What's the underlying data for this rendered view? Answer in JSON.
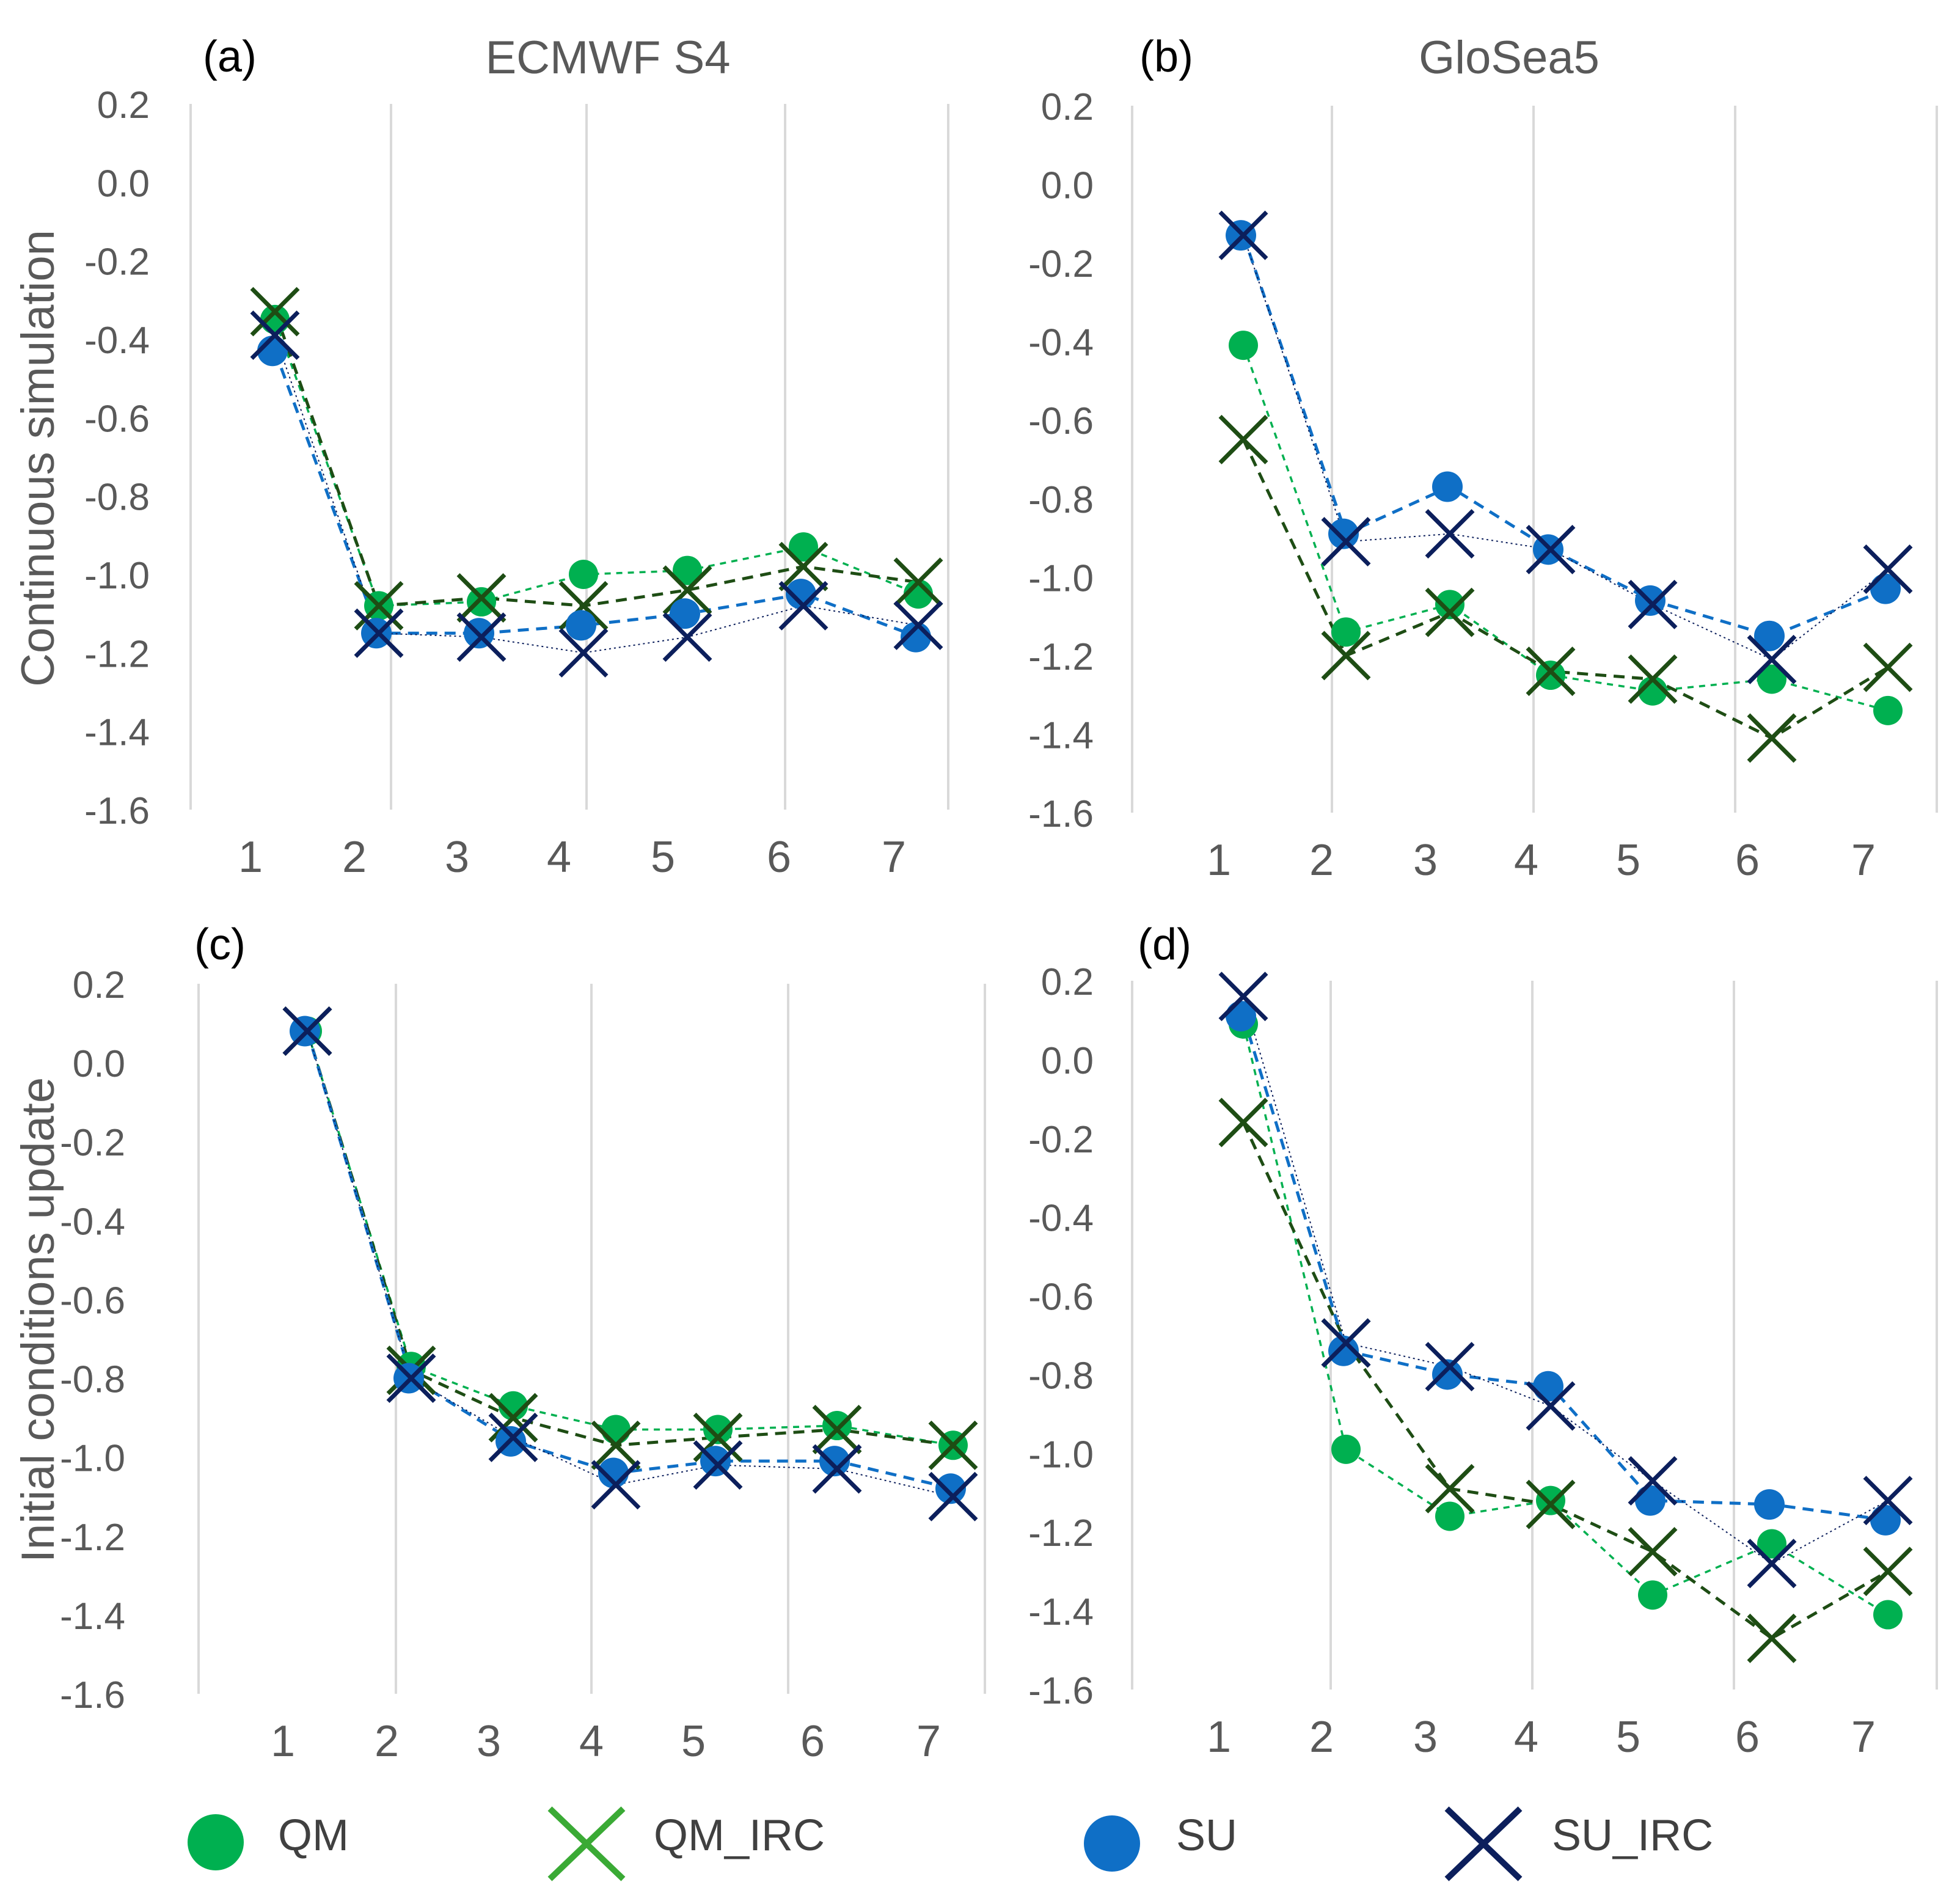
{
  "figure": {
    "row_labels": [
      "Continuous simulation",
      "Initial conditions update"
    ],
    "column_titles": [
      "ECMWF S4",
      "GloSea5"
    ]
  },
  "colors": {
    "QM": "#00b050",
    "QM_IRC": "#1e4d14",
    "QM_IRC_legend": "#3aaa35",
    "SU": "#0f6fc6",
    "SU_IRC": "#0c1f5c",
    "grid": "#d9d9d9",
    "tick_text": "#595959"
  },
  "legend": [
    {
      "series": "QM",
      "label": "QM",
      "marker": "dot-icon"
    },
    {
      "series": "QM_IRC",
      "label": "QM_IRC",
      "marker": "cross-icon"
    },
    {
      "series": "SU",
      "label": "SU",
      "marker": "dot-icon"
    },
    {
      "series": "SU_IRC",
      "label": "SU_IRC",
      "marker": "cross-icon"
    }
  ],
  "chart_data": [
    {
      "type": "line",
      "panel": "(a)",
      "title": "ECMWF S4",
      "ylabel": "Continuous simulation",
      "categories": [
        "1",
        "2",
        "3",
        "4",
        "5",
        "6",
        "7"
      ],
      "ylim": [
        -1.6,
        0.2
      ],
      "yticks": [
        "0.2",
        "0.0",
        "-0.2",
        "-0.4",
        "-0.6",
        "-0.8",
        "-1.0",
        "-1.2",
        "-1.4",
        "-1.6"
      ],
      "series": [
        {
          "name": "QM",
          "values": [
            -0.35,
            -1.08,
            -1.07,
            -1.0,
            -0.99,
            -0.93,
            -1.05
          ]
        },
        {
          "name": "QM_IRC",
          "values": [
            -0.33,
            -1.08,
            -1.06,
            -1.08,
            -1.04,
            -0.98,
            -1.02
          ]
        },
        {
          "name": "SU",
          "values": [
            -0.43,
            -1.15,
            -1.15,
            -1.13,
            -1.1,
            -1.05,
            -1.16
          ]
        },
        {
          "name": "SU_IRC",
          "values": [
            -0.39,
            -1.15,
            -1.16,
            -1.2,
            -1.16,
            -1.08,
            -1.13
          ]
        }
      ]
    },
    {
      "type": "line",
      "panel": "(b)",
      "title": "GloSea5",
      "ylabel": "",
      "categories": [
        "1",
        "2",
        "3",
        "4",
        "5",
        "6",
        "7"
      ],
      "ylim": [
        -1.6,
        0.2
      ],
      "yticks": [
        "0.2",
        "0.0",
        "-0.2",
        "-0.4",
        "-0.6",
        "-0.8",
        "-1.0",
        "-1.2",
        "-1.4",
        "-1.6"
      ],
      "series": [
        {
          "name": "QM",
          "values": [
            -0.41,
            -1.14,
            -1.07,
            -1.25,
            -1.29,
            -1.26,
            -1.34
          ]
        },
        {
          "name": "QM_IRC",
          "values": [
            -0.65,
            -1.2,
            -1.09,
            -1.24,
            -1.26,
            -1.41,
            -1.23
          ]
        },
        {
          "name": "SU",
          "values": [
            -0.13,
            -0.89,
            -0.77,
            -0.93,
            -1.06,
            -1.15,
            -1.03
          ]
        },
        {
          "name": "SU_IRC",
          "values": [
            -0.13,
            -0.91,
            -0.89,
            -0.93,
            -1.07,
            -1.21,
            -0.98
          ]
        }
      ]
    },
    {
      "type": "line",
      "panel": "(c)",
      "title": "",
      "ylabel": "Initial conditions update",
      "categories": [
        "1",
        "2",
        "3",
        "4",
        "5",
        "6",
        "7"
      ],
      "ylim": [
        -1.6,
        0.2
      ],
      "yticks": [
        "0.2",
        "0.0",
        "-0.2",
        "-0.4",
        "-0.6",
        "-0.8",
        "-1.0",
        "-1.2",
        "-1.4",
        "-1.6"
      ],
      "series": [
        {
          "name": "QM",
          "values": [
            0.08,
            -0.77,
            -0.87,
            -0.93,
            -0.93,
            -0.92,
            -0.97
          ]
        },
        {
          "name": "QM_IRC",
          "values": [
            0.08,
            -0.78,
            -0.9,
            -0.97,
            -0.95,
            -0.93,
            -0.97
          ]
        },
        {
          "name": "SU",
          "values": [
            0.08,
            -0.8,
            -0.96,
            -1.04,
            -1.01,
            -1.01,
            -1.08
          ]
        },
        {
          "name": "SU_IRC",
          "values": [
            0.08,
            -0.8,
            -0.95,
            -1.07,
            -1.02,
            -1.03,
            -1.1
          ]
        }
      ]
    },
    {
      "type": "line",
      "panel": "(d)",
      "title": "",
      "ylabel": "",
      "categories": [
        "1",
        "2",
        "3",
        "4",
        "5",
        "6",
        "7"
      ],
      "ylim": [
        -1.6,
        0.2
      ],
      "yticks": [
        "0.2",
        "0.0",
        "-0.2",
        "-0.4",
        "-0.6",
        "-0.8",
        "-1.0",
        "-1.2",
        "-1.4",
        "-1.6"
      ],
      "series": [
        {
          "name": "QM",
          "values": [
            0.09,
            -0.99,
            -1.16,
            -1.12,
            -1.36,
            -1.23,
            -1.41
          ]
        },
        {
          "name": "QM_IRC",
          "values": [
            -0.16,
            -0.72,
            -1.09,
            -1.13,
            -1.25,
            -1.47,
            -1.3
          ]
        },
        {
          "name": "SU",
          "values": [
            0.11,
            -0.74,
            -0.8,
            -0.83,
            -1.12,
            -1.13,
            -1.17
          ]
        },
        {
          "name": "SU_IRC",
          "values": [
            0.16,
            -0.72,
            -0.78,
            -0.88,
            -1.07,
            -1.28,
            -1.12
          ]
        }
      ]
    }
  ]
}
